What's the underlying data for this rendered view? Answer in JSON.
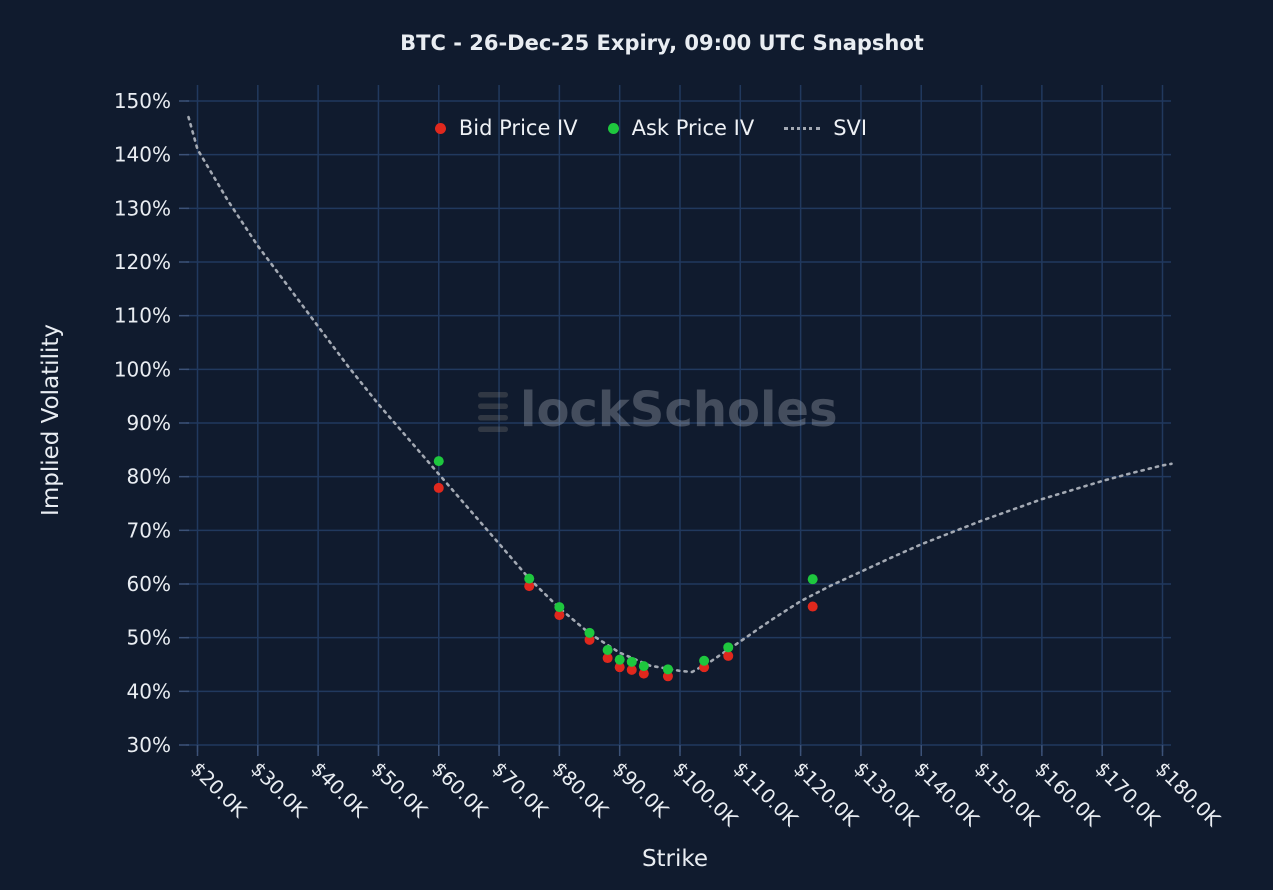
{
  "title": "BTC - 26-Dec-25 Expiry, 09:00 UTC Snapshot",
  "axes": {
    "x_title": "Strike",
    "y_title": "Implied Volatility"
  },
  "watermark": {
    "text": "BlockScholes",
    "suffix": "lockScholes"
  },
  "colors": {
    "background": "#101b2e",
    "grid": "#21395e",
    "tick": "#3c5278",
    "text": "#e9edf2",
    "bid": "#e0281d",
    "ask": "#1ec73e",
    "svi": "#a3a9b3",
    "watermark": "#9a9689"
  },
  "chart_data": {
    "type": "scatter",
    "title": "BTC - 26-Dec-25 Expiry, 09:00 UTC Snapshot",
    "xlabel": "Strike",
    "ylabel": "Implied Volatility",
    "x_unit": "USD (thousands)",
    "y_unit": "percent",
    "xlim": [
      18,
      182
    ],
    "ylim": [
      27.5,
      152.5
    ],
    "grid": true,
    "legend_position": "top-center",
    "x_ticks": [
      20,
      30,
      40,
      50,
      60,
      70,
      80,
      90,
      100,
      110,
      120,
      130,
      140,
      150,
      160,
      170,
      180
    ],
    "x_tick_labels": [
      "$20.0K",
      "$30.0K",
      "$40.0K",
      "$50.0K",
      "$60.0K",
      "$70.0K",
      "$80.0K",
      "$90.0K",
      "$100.0K",
      "$110.0K",
      "$120.0K",
      "$130.0K",
      "$140.0K",
      "$150.0K",
      "$160.0K",
      "$170.0K",
      "$180.0K"
    ],
    "y_ticks": [
      30,
      40,
      50,
      60,
      70,
      80,
      90,
      100,
      110,
      120,
      130,
      140,
      150
    ],
    "y_tick_labels": [
      "30%",
      "40%",
      "50%",
      "60%",
      "70%",
      "80%",
      "90%",
      "100%",
      "110%",
      "120%",
      "130%",
      "140%",
      "150%"
    ],
    "series": [
      {
        "name": "Bid Price IV",
        "type": "scatter",
        "color": "#e0281d",
        "x": [
          60,
          75,
          80,
          85,
          88,
          90,
          92,
          94,
          98,
          104,
          108,
          122
        ],
        "y": [
          77.9,
          59.6,
          54.2,
          49.6,
          46.2,
          44.5,
          44.0,
          43.3,
          42.8,
          44.5,
          46.6,
          55.8
        ]
      },
      {
        "name": "Ask Price IV",
        "type": "scatter",
        "color": "#1ec73e",
        "x": [
          60,
          75,
          80,
          85,
          88,
          90,
          92,
          94,
          98,
          104,
          108,
          122
        ],
        "y": [
          82.9,
          61.0,
          55.7,
          50.9,
          47.7,
          45.9,
          45.5,
          44.7,
          44.1,
          45.7,
          48.2,
          60.9
        ]
      },
      {
        "name": "SVI",
        "type": "line",
        "style": "dotted",
        "color": "#a3a9b3",
        "x": [
          18.5,
          20,
          25,
          30,
          35,
          40,
          45,
          50,
          55,
          60,
          65,
          70,
          75,
          80,
          85,
          90,
          95,
          100,
          102,
          105,
          110,
          115,
          120,
          125,
          130,
          135,
          140,
          145,
          150,
          155,
          160,
          165,
          170,
          175,
          180,
          181.5
        ],
        "y": [
          147,
          141,
          131.5,
          123,
          115.5,
          108,
          100.5,
          93.5,
          87,
          80.5,
          74,
          67.5,
          61,
          55.5,
          50.8,
          47.2,
          44.8,
          43.8,
          43.6,
          45.5,
          49.3,
          53.2,
          56.8,
          59.7,
          62.3,
          64.9,
          67.4,
          69.6,
          71.8,
          73.8,
          75.8,
          77.5,
          79.2,
          80.7,
          82.1,
          82.4
        ]
      }
    ]
  }
}
